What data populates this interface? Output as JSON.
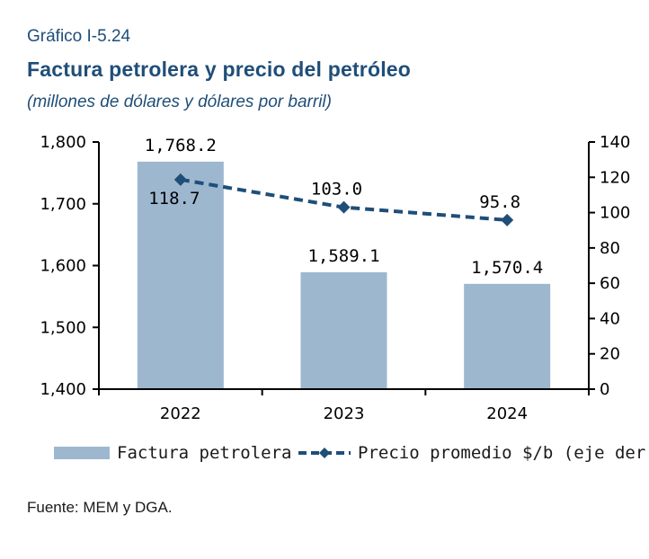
{
  "figure": {
    "label": "Gráfico I-5.24",
    "title": "Factura petrolera y precio del petróleo",
    "subtitle": "(millones de dólares y dólares por barril)",
    "source": "Fuente: MEM y DGA."
  },
  "colors": {
    "bars": "#9db7cf",
    "line": "#1f4e79",
    "title": "#1f4e79"
  },
  "chart_data": {
    "type": "bar",
    "categories": [
      "2022",
      "2023",
      "2024"
    ],
    "series": [
      {
        "name": "Factura petrolera",
        "type": "bar",
        "axis": "left",
        "values": [
          1768.2,
          1589.1,
          1570.4
        ],
        "labels": [
          "1,768.2",
          "1,589.1",
          "1,570.4"
        ]
      },
      {
        "name": "Precio promedio $/b (eje der.)",
        "type": "line",
        "style": "dashed",
        "marker": "diamond",
        "axis": "right",
        "values": [
          118.7,
          103.0,
          95.8
        ],
        "labels": [
          "118.7",
          "103.0",
          "95.8"
        ]
      }
    ],
    "y_left": {
      "min": 1400,
      "max": 1800,
      "ticks": [
        1400,
        1500,
        1600,
        1700,
        1800
      ],
      "tick_labels": [
        "1,400",
        "1,500",
        "1,600",
        "1,700",
        "1,800"
      ]
    },
    "y_right": {
      "min": 0,
      "max": 140,
      "ticks": [
        0,
        20,
        40,
        60,
        80,
        100,
        120,
        140
      ],
      "tick_labels": [
        "0",
        "20",
        "40",
        "60",
        "80",
        "100",
        "120",
        "140"
      ]
    },
    "grid": false,
    "legend": "bottom"
  }
}
